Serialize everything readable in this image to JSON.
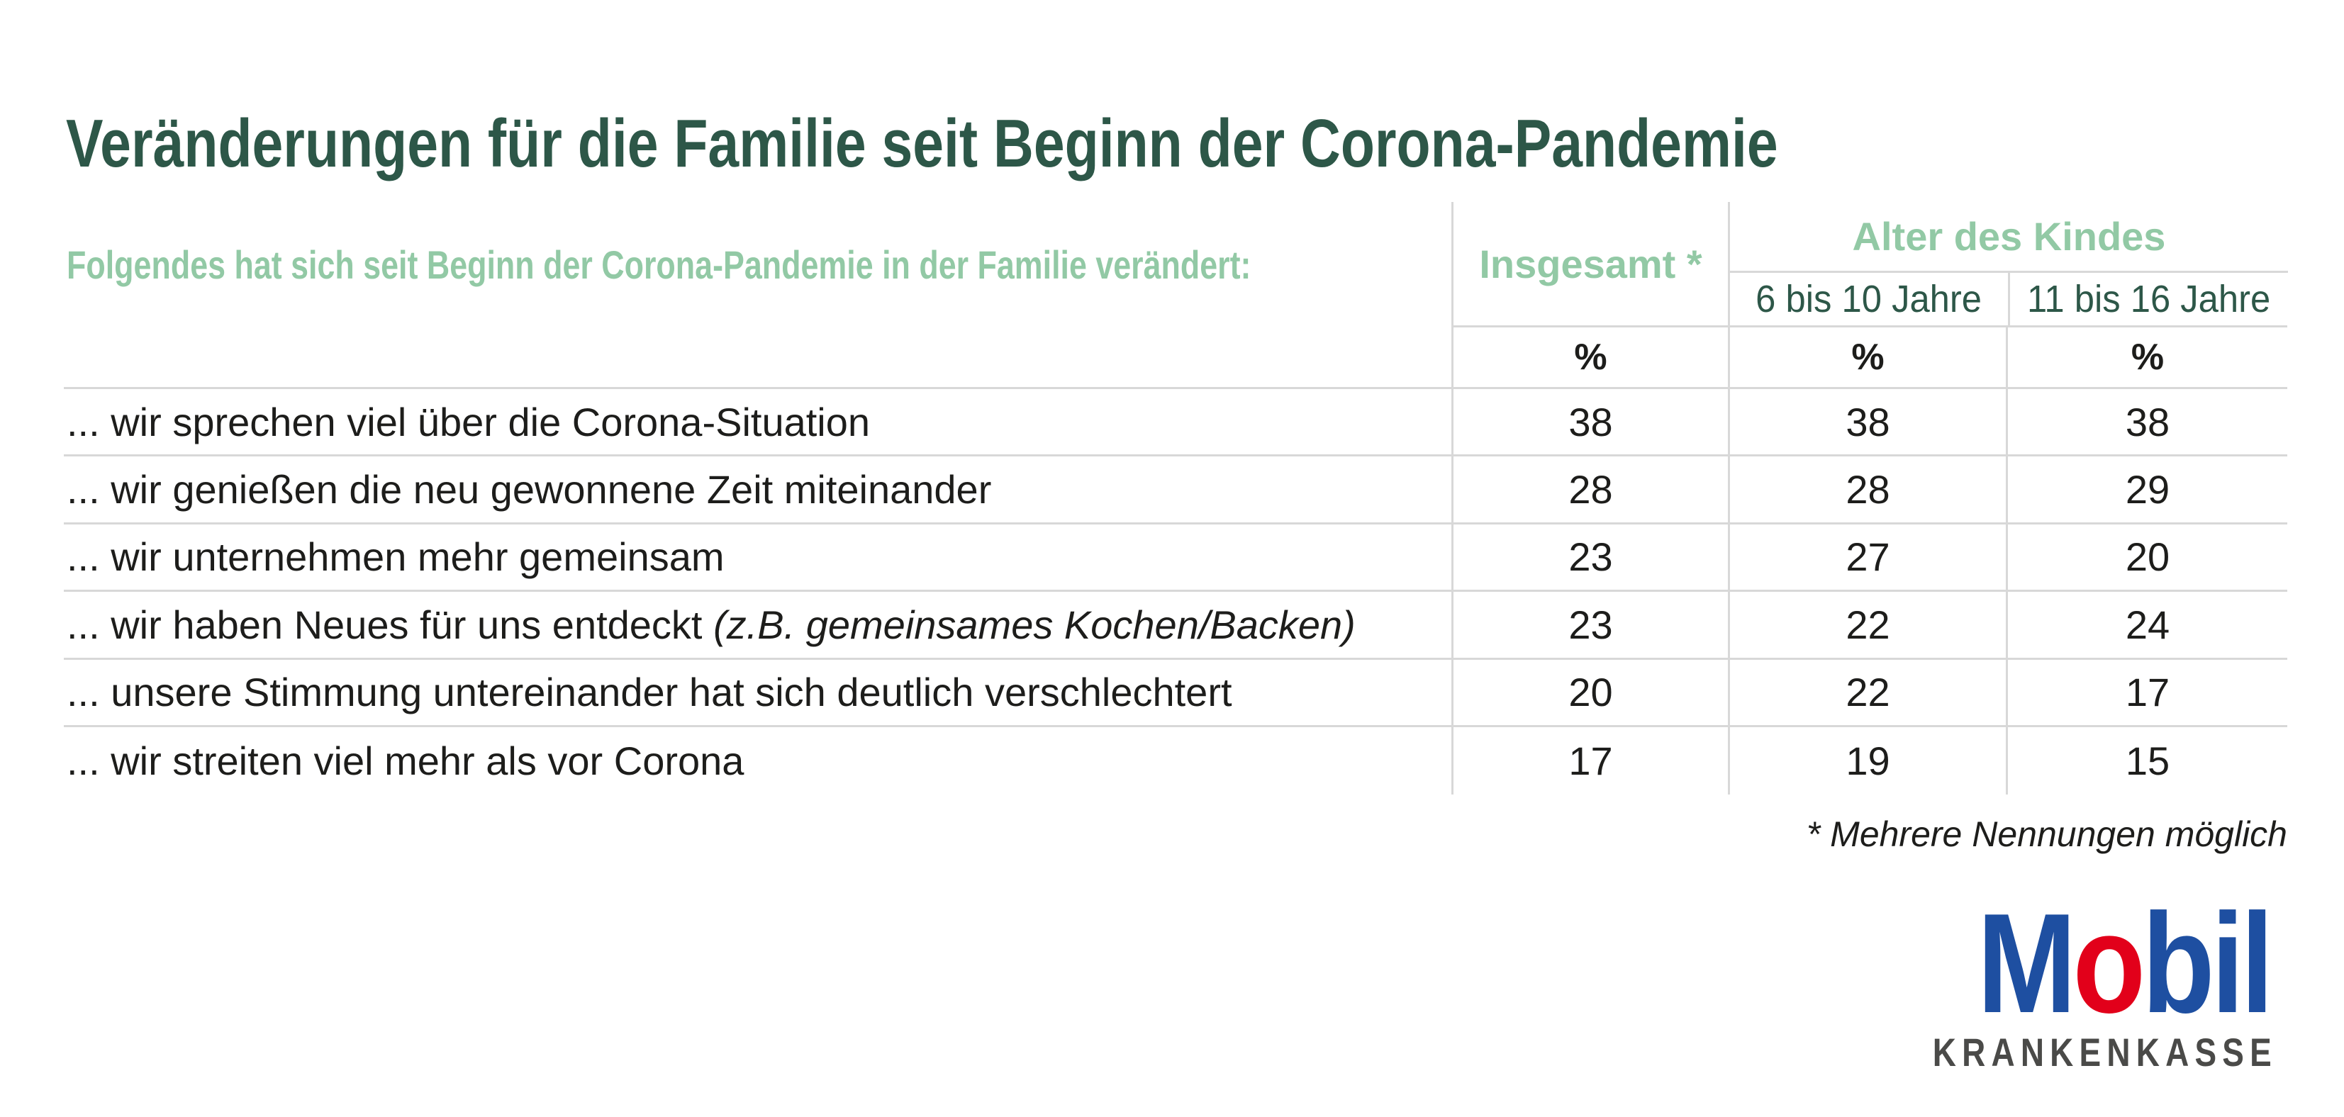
{
  "title": "Veränderungen für die Familie seit Beginn der Corona-Pandemie",
  "table": {
    "question_header": "Folgendes hat sich seit Beginn der Corona-Pandemie in der Familie verändert:",
    "col_total": "Insgesamt *",
    "group_header": "Alter des Kindes",
    "col_age1": "6 bis 10 Jahre",
    "col_age2": "11 bis 16 Jahre",
    "unit": "%",
    "rows": [
      {
        "label": "... wir sprechen viel über die Corona-Situation",
        "total": "38",
        "age_6_10": "38",
        "age_11_16": "38"
      },
      {
        "label": "... wir genießen die neu gewonnene Zeit miteinander",
        "total": "28",
        "age_6_10": "28",
        "age_11_16": "29"
      },
      {
        "label": "... wir unternehmen mehr gemeinsam",
        "total": "23",
        "age_6_10": "27",
        "age_11_16": "20"
      },
      {
        "label": "... wir haben Neues für uns entdeckt ",
        "label_italic": "(z.B. gemeinsames Kochen/Backen)",
        "total": "23",
        "age_6_10": "22",
        "age_11_16": "24"
      },
      {
        "label": "... unsere Stimmung untereinander hat sich deutlich verschlechtert",
        "total": "20",
        "age_6_10": "22",
        "age_11_16": "17"
      },
      {
        "label": "... wir streiten viel mehr als vor Corona",
        "total": "17",
        "age_6_10": "19",
        "age_11_16": "15"
      }
    ]
  },
  "footnote": "* Mehrere Nennungen möglich",
  "logo": {
    "m": "M",
    "o": "o",
    "bil": "bil",
    "subtitle": "KRANKENKASSE"
  },
  "colors": {
    "title_green": "#2d5748",
    "light_green": "#92c9a5",
    "body_text": "#1d1d1b",
    "grid_line": "#d8d8d8",
    "logo_blue": "#1e4fa1",
    "logo_red": "#e2001a",
    "logo_gray": "#4a4a48"
  },
  "chart_data": {
    "type": "table",
    "title": "Veränderungen für die Familie seit Beginn der Corona-Pandemie",
    "subtitle": "Folgendes hat sich seit Beginn der Corona-Pandemie in der Familie verändert:",
    "unit": "%",
    "categories": [
      "... wir sprechen viel über die Corona-Situation",
      "... wir genießen die neu gewonnene Zeit miteinander",
      "... wir unternehmen mehr gemeinsam",
      "... wir haben Neues für uns entdeckt (z.B. gemeinsames Kochen/Backen)",
      "... unsere Stimmung untereinander hat sich deutlich verschlechtert",
      "... wir streiten viel mehr als vor Corona"
    ],
    "series": [
      {
        "name": "Insgesamt *",
        "values": [
          38,
          28,
          23,
          23,
          20,
          17
        ]
      },
      {
        "name": "6 bis 10 Jahre",
        "values": [
          38,
          28,
          27,
          22,
          22,
          19
        ]
      },
      {
        "name": "11 bis 16 Jahre",
        "values": [
          38,
          29,
          20,
          24,
          17,
          15
        ]
      }
    ],
    "column_group": "Alter des Kindes",
    "footnote": "* Mehrere Nennungen möglich",
    "source_logo": "Mobil Krankenkasse"
  }
}
